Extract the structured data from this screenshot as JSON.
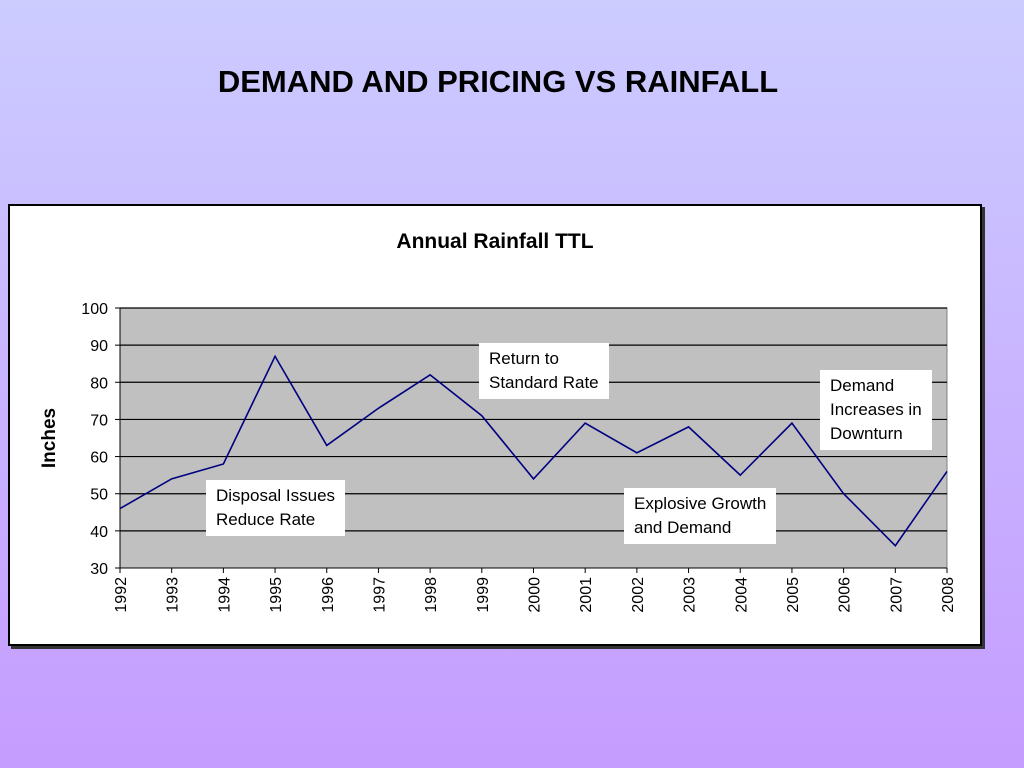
{
  "slide": {
    "title": "DEMAND AND PRICING VS RAINFALL"
  },
  "chart_data": {
    "type": "line",
    "title": "Annual Rainfall TTL",
    "xlabel": "",
    "ylabel": "Inches",
    "categories": [
      "1992",
      "1993",
      "1994",
      "1995",
      "1996",
      "1997",
      "1998",
      "1999",
      "2000",
      "2001",
      "2002",
      "2003",
      "2004",
      "2005",
      "2006",
      "2007",
      "2008"
    ],
    "series": [
      {
        "values": [
          46,
          54,
          58,
          87,
          63,
          73,
          82,
          71,
          54,
          69,
          61,
          68,
          55,
          69,
          50,
          36,
          56
        ],
        "color": "#000080"
      }
    ],
    "ylim": [
      30,
      100
    ],
    "yticks": [
      30,
      40,
      50,
      60,
      70,
      80,
      90,
      100
    ],
    "grid": true,
    "plot_background": "#c0c0c0",
    "annotations": [
      {
        "id": "disposal",
        "lines": [
          "Disposal Issues",
          "Reduce Rate"
        ]
      },
      {
        "id": "return",
        "lines": [
          "Return to",
          "Standard Rate"
        ]
      },
      {
        "id": "explosive",
        "lines": [
          "Explosive Growth",
          "and Demand"
        ]
      },
      {
        "id": "demand",
        "lines": [
          "Demand",
          "Increases in",
          "Downturn"
        ]
      }
    ]
  }
}
